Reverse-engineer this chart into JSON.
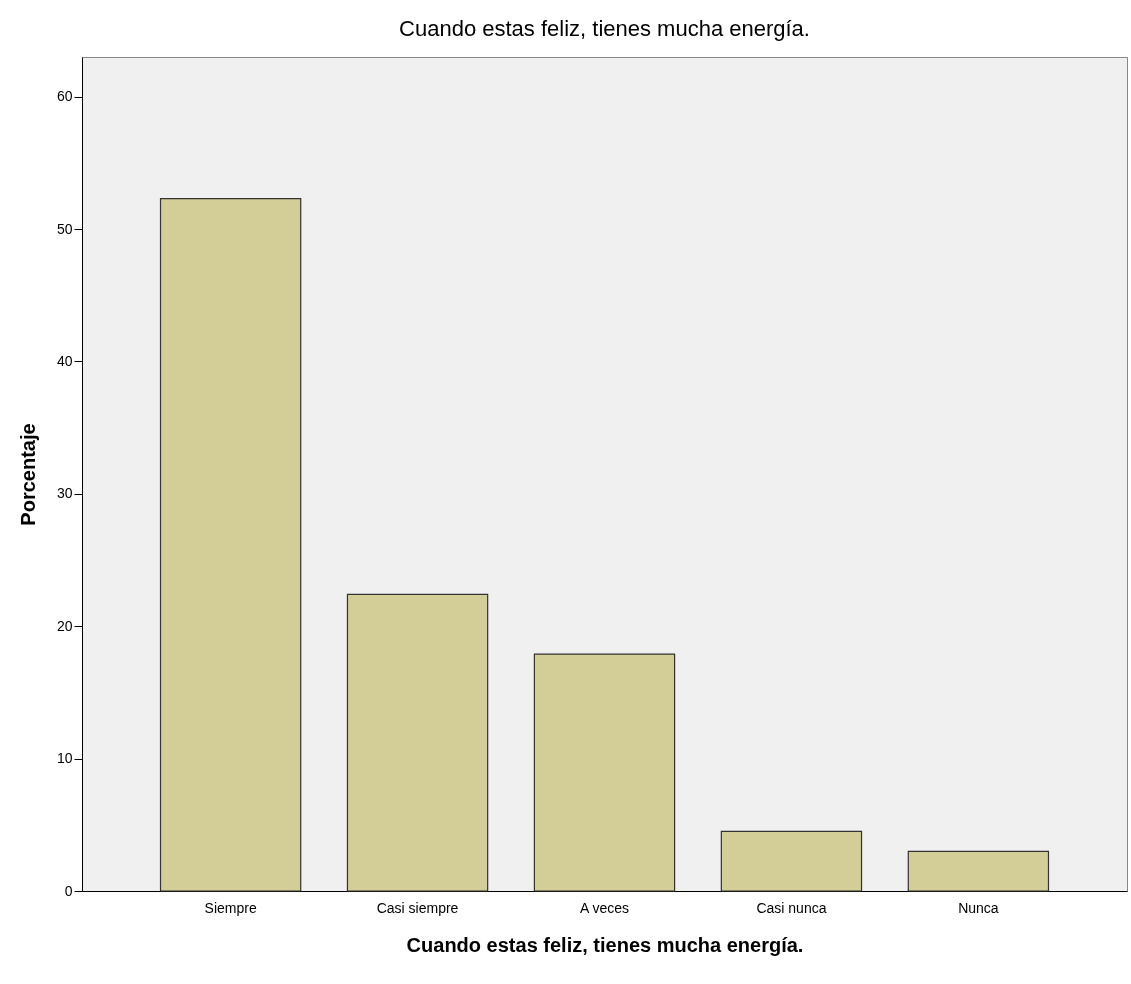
{
  "chart_data": {
    "type": "bar",
    "title": "Cuando estas feliz, tienes mucha energía.",
    "xlabel": "Cuando estas feliz, tienes mucha energía.",
    "ylabel": "Porcentaje",
    "categories": [
      "Siempre",
      "Casi siempre",
      "A veces",
      "Casi nunca",
      "Nunca"
    ],
    "values": [
      52.3,
      22.4,
      17.9,
      4.5,
      3.0
    ],
    "color": "#d3ce97",
    "ylim": [
      0,
      63
    ],
    "yticks": [
      0,
      10,
      20,
      30,
      40,
      50,
      60
    ]
  }
}
